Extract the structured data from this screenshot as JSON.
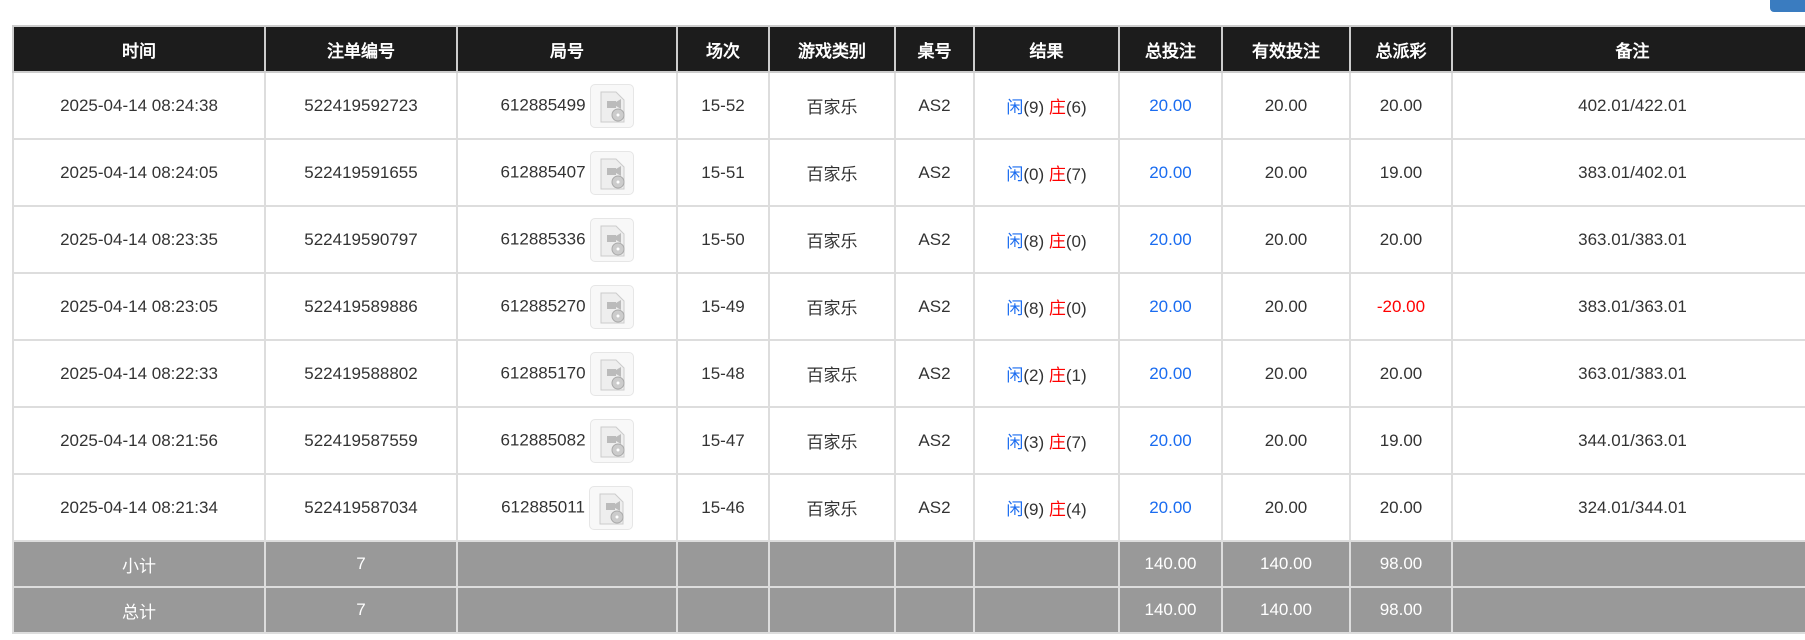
{
  "headers": [
    "时间",
    "注单编号",
    "局号",
    "场次",
    "游戏类别",
    "桌号",
    "结果",
    "总投注",
    "有效投注",
    "总派彩",
    "备注"
  ],
  "rows": [
    {
      "time": "2025-04-14 08:24:38",
      "bet_id": "522419592723",
      "round": "612885499",
      "session": "15-52",
      "game": "百家乐",
      "table": "AS2",
      "player_label": "闲",
      "player": "(9)",
      "banker_label": "庄",
      "banker": "(6)",
      "total_bet": "20.00",
      "valid_bet": "20.00",
      "payout": "20.00",
      "remark": "402.01/422.01"
    },
    {
      "time": "2025-04-14 08:24:05",
      "bet_id": "522419591655",
      "round": "612885407",
      "session": "15-51",
      "game": "百家乐",
      "table": "AS2",
      "player_label": "闲",
      "player": "(0)",
      "banker_label": "庄",
      "banker": "(7)",
      "total_bet": "20.00",
      "valid_bet": "20.00",
      "payout": "19.00",
      "remark": "383.01/402.01"
    },
    {
      "time": "2025-04-14 08:23:35",
      "bet_id": "522419590797",
      "round": "612885336",
      "session": "15-50",
      "game": "百家乐",
      "table": "AS2",
      "player_label": "闲",
      "player": "(8)",
      "banker_label": "庄",
      "banker": "(0)",
      "total_bet": "20.00",
      "valid_bet": "20.00",
      "payout": "20.00",
      "remark": "363.01/383.01"
    },
    {
      "time": "2025-04-14 08:23:05",
      "bet_id": "522419589886",
      "round": "612885270",
      "session": "15-49",
      "game": "百家乐",
      "table": "AS2",
      "player_label": "闲",
      "player": "(8)",
      "banker_label": "庄",
      "banker": "(0)",
      "total_bet": "20.00",
      "valid_bet": "20.00",
      "payout": "-20.00",
      "remark": "383.01/363.01"
    },
    {
      "time": "2025-04-14 08:22:33",
      "bet_id": "522419588802",
      "round": "612885170",
      "session": "15-48",
      "game": "百家乐",
      "table": "AS2",
      "player_label": "闲",
      "player": "(2)",
      "banker_label": "庄",
      "banker": "(1)",
      "total_bet": "20.00",
      "valid_bet": "20.00",
      "payout": "20.00",
      "remark": "363.01/383.01"
    },
    {
      "time": "2025-04-14 08:21:56",
      "bet_id": "522419587559",
      "round": "612885082",
      "session": "15-47",
      "game": "百家乐",
      "table": "AS2",
      "player_label": "闲",
      "player": "(3)",
      "banker_label": "庄",
      "banker": "(7)",
      "total_bet": "20.00",
      "valid_bet": "20.00",
      "payout": "19.00",
      "remark": "344.01/363.01"
    },
    {
      "time": "2025-04-14 08:21:34",
      "bet_id": "522419587034",
      "round": "612885011",
      "session": "15-46",
      "game": "百家乐",
      "table": "AS2",
      "player_label": "闲",
      "player": "(9)",
      "banker_label": "庄",
      "banker": "(4)",
      "total_bet": "20.00",
      "valid_bet": "20.00",
      "payout": "20.00",
      "remark": "324.01/344.01"
    }
  ],
  "summary": [
    {
      "label": "小计",
      "count": "7",
      "total_bet": "140.00",
      "valid_bet": "140.00",
      "payout": "98.00"
    },
    {
      "label": "总计",
      "count": "7",
      "total_bet": "140.00",
      "valid_bet": "140.00",
      "payout": "98.00"
    }
  ],
  "colors": {
    "header_bg": "#1c1c1c",
    "summary_bg": "#999999",
    "player": "#1a6cf0",
    "banker": "#ff0000",
    "negative": "#ff0000"
  },
  "icons": {
    "replay": "video-file-icon"
  }
}
